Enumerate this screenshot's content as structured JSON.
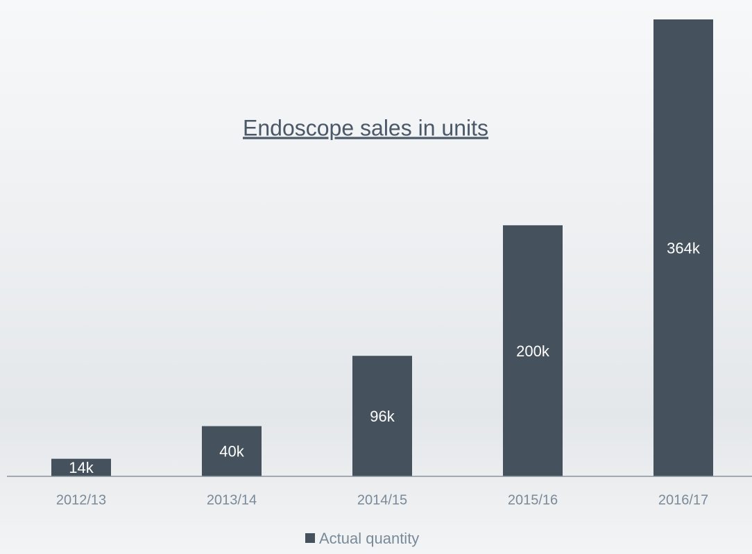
{
  "chart_data": {
    "type": "bar",
    "title": "Endoscope sales in units",
    "categories": [
      "2012/13",
      "2013/14",
      "2014/15",
      "2015/16",
      "2016/17"
    ],
    "series": [
      {
        "name": "Actual quantity",
        "color": "#45525d",
        "values": [
          14000,
          40000,
          96000,
          200000,
          364000
        ],
        "value_labels": [
          "14k",
          "40k",
          "96k",
          "200k",
          "364k"
        ]
      }
    ],
    "ylim": [
      0,
      364000
    ],
    "legend": "bottom"
  }
}
